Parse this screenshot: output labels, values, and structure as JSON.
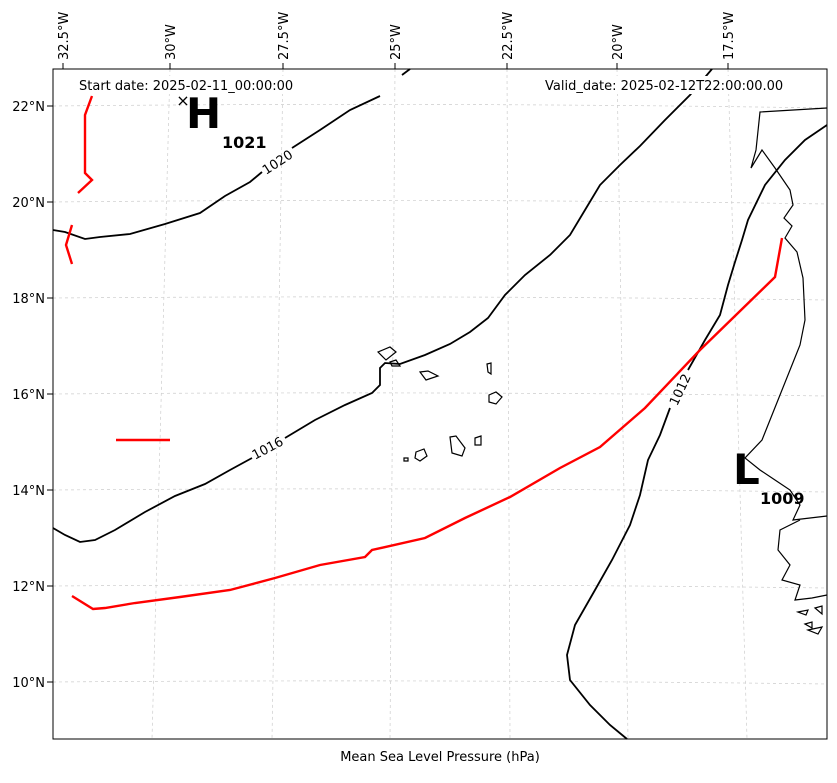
{
  "header": {
    "start_date": "Start date: 2025-02-11_00:00:00",
    "valid_date": "Valid_date: 2025-02-12T22:00:00.00"
  },
  "footer": {
    "caption": "Mean Sea Level Pressure (hPa)"
  },
  "axes": {
    "lon_ticks": [
      "32.5°W",
      "30°W",
      "27.5°W",
      "25°W",
      "22.5°W",
      "20°W",
      "17.5°W"
    ],
    "lat_ticks": [
      "22°N",
      "20°N",
      "18°N",
      "16°N",
      "14°N",
      "12°N",
      "10°N"
    ]
  },
  "contours": [
    {
      "label": "1020",
      "color": "#000000"
    },
    {
      "label": "1016",
      "color": "#000000"
    },
    {
      "label": "1012",
      "color": "#000000"
    }
  ],
  "highlight_color": "#ff0000",
  "pressure_centers": [
    {
      "type": "H",
      "value": "1021",
      "marker": "×"
    },
    {
      "type": "L",
      "value": "1009"
    }
  ]
}
